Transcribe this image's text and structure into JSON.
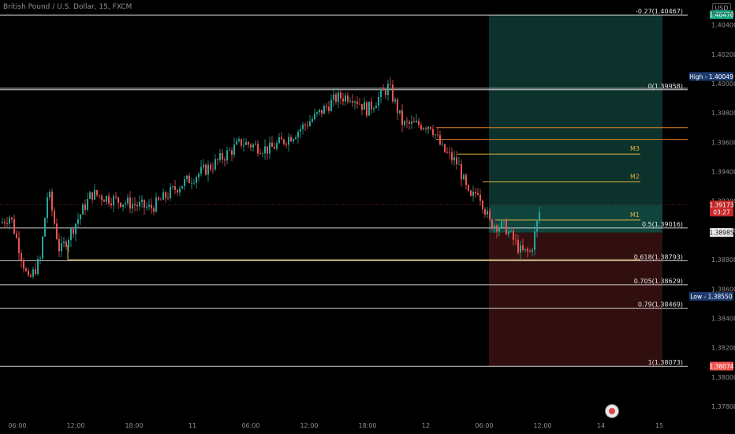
{
  "title": "British Pound / U.S. Dollar, 15, FXCM",
  "currency_button": "USD",
  "chart_data": {
    "type": "candlestick",
    "symbol": "GBPUSD",
    "ylim": [
      1.3773,
      1.4057
    ],
    "x_ticks": [
      "06:00",
      "12:00",
      "18:00",
      "11",
      "06:00",
      "12:00",
      "18:00",
      "12",
      "06:00",
      "12:00",
      "14",
      "15"
    ],
    "y_ticks": [
      "1.40400",
      "1.40200",
      "1.40000",
      "1.39800",
      "1.39600",
      "1.39400",
      "1.39200",
      "1.39000",
      "1.38800",
      "1.38600",
      "1.38400",
      "1.38200",
      "1.38000",
      "1.37800"
    ],
    "fib_levels": [
      {
        "label": "-0.27(1.40467)",
        "price": 1.40467
      },
      {
        "label": "0(1.39958)",
        "price": 1.39958
      },
      {
        "label": "0.5(1.39016)",
        "price": 1.39016
      },
      {
        "label": "0.618(1.38793)",
        "price": 1.38793
      },
      {
        "label": "0.705(1.38629)",
        "price": 1.38629
      },
      {
        "label": "0.79(1.38469)",
        "price": 1.38469
      },
      {
        "label": "1(1.38073)",
        "price": 1.38073
      }
    ],
    "markers": [
      {
        "label": "M3",
        "price": 1.3952
      },
      {
        "label": "M2",
        "price": 1.3933
      },
      {
        "label": "M1",
        "price": 1.3907
      }
    ],
    "price_labels": [
      {
        "text": "1.40470",
        "price": 1.4047,
        "color": "#14a37f"
      },
      {
        "text": "High - 1.40049",
        "price": 1.40049,
        "color": "#1e3a6e"
      },
      {
        "text": "1.39173",
        "sub": "03:27",
        "price": 1.39173,
        "color": "#c62828"
      },
      {
        "text": "1.38985",
        "price": 1.38985,
        "color": "#e8e8e8"
      },
      {
        "text": "Low - 1.38550",
        "price": 1.3855,
        "color": "#1e3a6e"
      },
      {
        "text": "1.38074",
        "price": 1.38074,
        "color": "#f05350"
      }
    ],
    "position": {
      "entry": 1.38985,
      "target": 1.4047,
      "stop": 1.38074
    },
    "accent_colors": {
      "up": "#26a69a",
      "down": "#ef5350",
      "profit": "#0e3b33",
      "loss": "#3b1212"
    }
  }
}
